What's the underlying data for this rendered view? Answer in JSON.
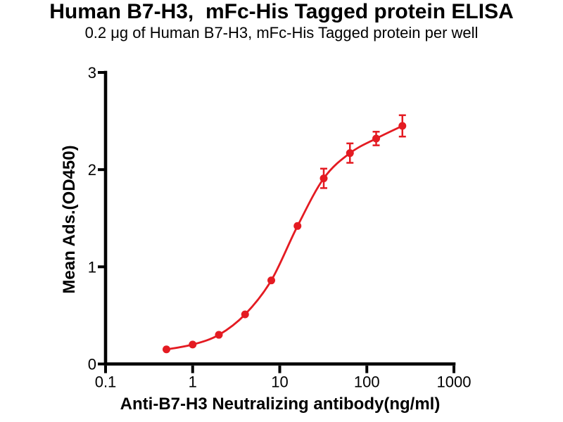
{
  "chart_data": {
    "type": "scatter",
    "title": "Human B7-H3,  mFc-His Tagged protein ELISA",
    "subtitle": "0.2 μg of Human B7-H3, mFc-His Tagged protein per well",
    "xlabel": "Anti-B7-H3 Neutralizing antibody(ng/ml)",
    "ylabel": "Mean Ads.(OD450)",
    "x_scale": "log10",
    "xlim": [
      0.1,
      1000
    ],
    "ylim": [
      0,
      3
    ],
    "grid": false,
    "legend": "none",
    "fit": "sigmoidal dose-response curve through points",
    "x_ticks": [
      {
        "value": 0.1,
        "label": "0.1"
      },
      {
        "value": 1,
        "label": "1"
      },
      {
        "value": 10,
        "label": "10"
      },
      {
        "value": 100,
        "label": "100"
      },
      {
        "value": 1000,
        "label": "1000"
      }
    ],
    "y_ticks": [
      {
        "value": 0,
        "label": "0"
      },
      {
        "value": 1,
        "label": "1"
      },
      {
        "value": 2,
        "label": "2"
      },
      {
        "value": 3,
        "label": "3"
      }
    ],
    "series": [
      {
        "name": "Anti-B7-H3 Neutralizing antibody",
        "color": "#e41b22",
        "marker": "circle",
        "points": [
          {
            "x": 0.5,
            "y": 0.15,
            "err": 0
          },
          {
            "x": 1,
            "y": 0.2,
            "err": 0
          },
          {
            "x": 2,
            "y": 0.3,
            "err": 0
          },
          {
            "x": 4,
            "y": 0.51,
            "err": 0
          },
          {
            "x": 8,
            "y": 0.86,
            "err": 0
          },
          {
            "x": 16,
            "y": 1.42,
            "err": 0
          },
          {
            "x": 32,
            "y": 1.91,
            "err": 0.1
          },
          {
            "x": 64,
            "y": 2.17,
            "err": 0.1
          },
          {
            "x": 128,
            "y": 2.32,
            "err": 0.07
          },
          {
            "x": 256,
            "y": 2.45,
            "err": 0.11
          }
        ]
      }
    ]
  },
  "colors": {
    "background": "#ffffff",
    "axis": "#000000",
    "text": "#000000",
    "series_red": "#e41b22"
  }
}
